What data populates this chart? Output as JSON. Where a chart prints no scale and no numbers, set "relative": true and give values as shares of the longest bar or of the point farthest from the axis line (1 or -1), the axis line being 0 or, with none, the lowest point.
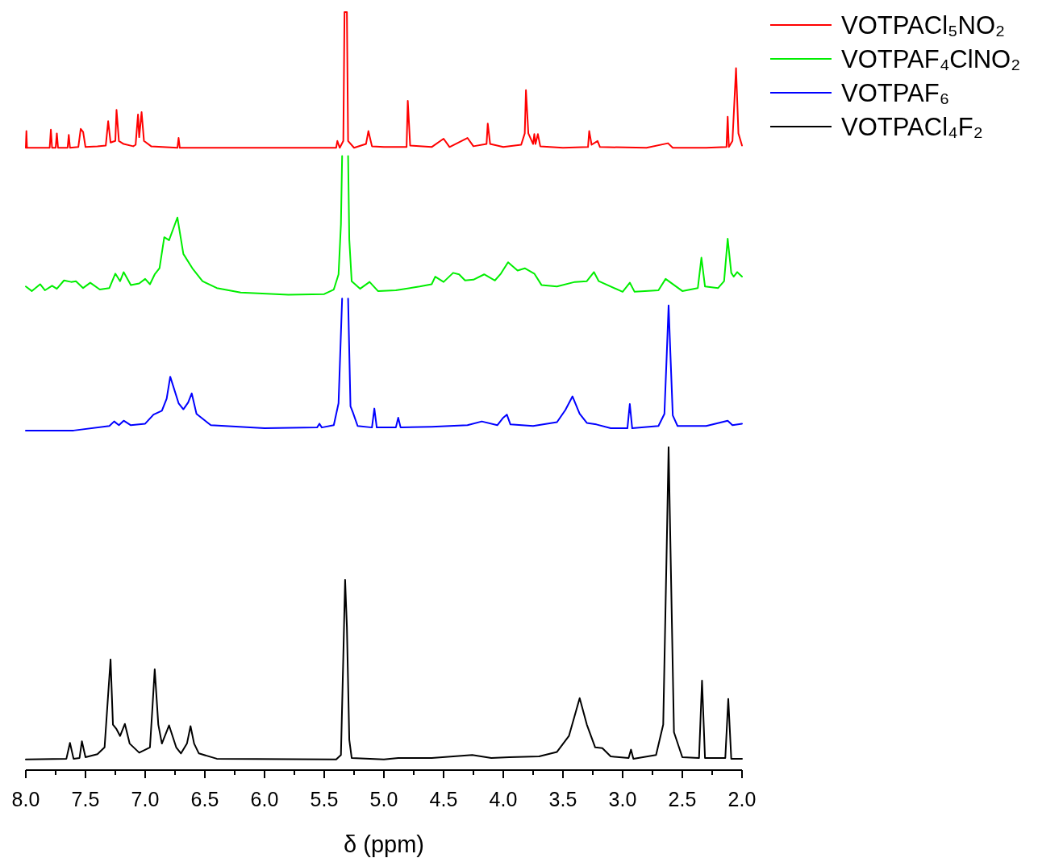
{
  "chart_data": {
    "type": "line",
    "relative": true,
    "xlabel": "δ (ppm)",
    "xlim": [
      8,
      2
    ],
    "xticks": [
      {
        "value": 8,
        "label": "8.0"
      },
      {
        "value": 7.75,
        "label": null
      },
      {
        "value": 7.5,
        "label": "7.5"
      },
      {
        "value": 7.25,
        "label": null
      },
      {
        "value": 7,
        "label": "7.0"
      },
      {
        "value": 6.75,
        "label": null
      },
      {
        "value": 6.5,
        "label": "6.5"
      },
      {
        "value": 6.25,
        "label": null
      },
      {
        "value": 6,
        "label": "6.0"
      },
      {
        "value": 5.75,
        "label": null
      },
      {
        "value": 5.5,
        "label": "5.5"
      },
      {
        "value": 5.25,
        "label": null
      },
      {
        "value": 5,
        "label": "5.0"
      },
      {
        "value": 4.75,
        "label": null
      },
      {
        "value": 4.5,
        "label": "4.5"
      },
      {
        "value": 4.25,
        "label": null
      },
      {
        "value": 4,
        "label": "4.0"
      },
      {
        "value": 3.75,
        "label": null
      },
      {
        "value": 3.5,
        "label": "3.5"
      },
      {
        "value": 3.25,
        "label": null
      },
      {
        "value": 3,
        "label": "3.0"
      },
      {
        "value": 2.75,
        "label": null
      },
      {
        "value": 2.5,
        "label": "2.5"
      },
      {
        "value": 2.25,
        "label": null
      },
      {
        "value": 2,
        "label": "2.0"
      }
    ],
    "legend": "top right",
    "tick_labels": "x",
    "grid": false,
    "marker": "none",
    "line_style": "solid",
    "series": [
      {
        "name": "VOTPACl₅NO₂",
        "color": "#ff0000",
        "x": [
          8.0,
          7.995,
          7.99,
          7.8,
          7.79,
          7.78,
          7.75,
          7.74,
          7.73,
          7.65,
          7.64,
          7.63,
          7.56,
          7.54,
          7.52,
          7.5,
          7.4,
          7.33,
          7.31,
          7.29,
          7.25,
          7.24,
          7.22,
          7.18,
          7.1,
          7.08,
          7.06,
          7.05,
          7.03,
          7.01,
          6.95,
          6.73,
          6.72,
          6.71,
          6.0,
          5.4,
          5.39,
          5.37,
          5.34,
          5.33,
          5.31,
          5.3,
          5.25,
          5.15,
          5.13,
          5.1,
          5.0,
          4.81,
          4.8,
          4.78,
          4.6,
          4.5,
          4.45,
          4.3,
          4.25,
          4.14,
          4.13,
          4.11,
          4.0,
          3.85,
          3.82,
          3.81,
          3.79,
          3.75,
          3.74,
          3.73,
          3.71,
          3.69,
          3.5,
          3.29,
          3.28,
          3.26,
          3.21,
          3.19,
          2.8,
          2.62,
          2.58,
          2.3,
          2.13,
          2.12,
          2.11,
          2.08,
          2.05,
          2.03,
          2.0
        ],
        "values": [
          0.821,
          0.843,
          0.821,
          0.821,
          0.845,
          0.821,
          0.821,
          0.84,
          0.821,
          0.821,
          0.838,
          0.821,
          0.822,
          0.846,
          0.842,
          0.822,
          0.823,
          0.824,
          0.856,
          0.828,
          0.83,
          0.871,
          0.83,
          0.826,
          0.823,
          0.825,
          0.865,
          0.835,
          0.868,
          0.83,
          0.823,
          0.821,
          0.834,
          0.821,
          0.821,
          0.821,
          0.83,
          0.821,
          0.83,
          1.0,
          1.0,
          0.83,
          0.821,
          0.826,
          0.843,
          0.823,
          0.822,
          0.822,
          0.883,
          0.824,
          0.822,
          0.833,
          0.822,
          0.834,
          0.823,
          0.826,
          0.853,
          0.826,
          0.822,
          0.825,
          0.84,
          0.897,
          0.84,
          0.826,
          0.839,
          0.826,
          0.839,
          0.823,
          0.821,
          0.822,
          0.843,
          0.825,
          0.83,
          0.822,
          0.821,
          0.827,
          0.821,
          0.821,
          0.822,
          0.862,
          0.822,
          0.83,
          0.926,
          0.84,
          0.824
        ]
      },
      {
        "name": "VOTPAF₄ClNO₂",
        "color": "#00ee00",
        "x": [
          8.0,
          7.95,
          7.88,
          7.84,
          7.78,
          7.74,
          7.68,
          7.62,
          7.58,
          7.52,
          7.46,
          7.38,
          7.3,
          7.25,
          7.21,
          7.18,
          7.12,
          7.05,
          7.0,
          6.96,
          6.92,
          6.88,
          6.84,
          6.8,
          6.73,
          6.68,
          6.6,
          6.52,
          6.4,
          6.2,
          5.8,
          5.5,
          5.42,
          5.38,
          5.36,
          5.35,
          5.325,
          5.3,
          5.29,
          5.27,
          5.2,
          5.12,
          5.05,
          4.9,
          4.7,
          4.6,
          4.57,
          4.5,
          4.42,
          4.37,
          4.32,
          4.25,
          4.16,
          4.07,
          4.02,
          3.96,
          3.88,
          3.82,
          3.74,
          3.68,
          3.55,
          3.4,
          3.3,
          3.24,
          3.2,
          3.0,
          2.94,
          2.9,
          2.7,
          2.64,
          2.5,
          2.37,
          2.34,
          2.31,
          2.2,
          2.15,
          2.12,
          2.09,
          2.07,
          2.04,
          2.0
        ],
        "values": [
          0.638,
          0.632,
          0.641,
          0.633,
          0.639,
          0.635,
          0.646,
          0.644,
          0.645,
          0.636,
          0.643,
          0.634,
          0.636,
          0.655,
          0.645,
          0.657,
          0.64,
          0.642,
          0.648,
          0.641,
          0.654,
          0.662,
          0.703,
          0.699,
          0.729,
          0.681,
          0.661,
          0.645,
          0.636,
          0.63,
          0.627,
          0.628,
          0.634,
          0.654,
          0.72,
          0.81,
          null,
          0.81,
          0.7,
          0.645,
          0.635,
          0.644,
          0.632,
          0.633,
          0.638,
          0.641,
          0.651,
          0.644,
          0.656,
          0.654,
          0.646,
          0.647,
          0.654,
          0.646,
          0.655,
          0.67,
          0.659,
          0.662,
          0.655,
          0.64,
          0.638,
          0.644,
          0.645,
          0.657,
          0.645,
          0.631,
          0.643,
          0.631,
          0.633,
          0.648,
          0.632,
          0.636,
          0.676,
          0.638,
          0.636,
          0.645,
          0.701,
          0.656,
          0.651,
          0.657,
          0.651
        ]
      },
      {
        "name": "VOTPAF₆",
        "color": "#0000ff",
        "x": [
          8.0,
          7.6,
          7.3,
          7.26,
          7.22,
          7.18,
          7.12,
          7.0,
          6.93,
          6.86,
          6.82,
          6.79,
          6.72,
          6.68,
          6.64,
          6.61,
          6.57,
          6.45,
          6.0,
          5.56,
          5.54,
          5.52,
          5.42,
          5.38,
          5.35,
          5.325,
          5.3,
          5.28,
          5.26,
          5.22,
          5.1,
          5.08,
          5.06,
          4.9,
          4.88,
          4.86,
          4.6,
          4.3,
          4.18,
          4.05,
          4.0,
          3.97,
          3.94,
          3.75,
          3.55,
          3.48,
          3.42,
          3.36,
          3.3,
          3.22,
          3.1,
          2.96,
          2.94,
          2.92,
          2.7,
          2.65,
          2.63,
          2.615,
          2.6,
          2.58,
          2.54,
          2.3,
          2.12,
          2.08,
          2.0
        ],
        "values": [
          0.448,
          0.448,
          0.454,
          0.46,
          0.455,
          0.461,
          0.455,
          0.457,
          0.469,
          0.474,
          0.49,
          0.519,
          0.484,
          0.476,
          0.485,
          0.497,
          0.47,
          0.455,
          0.451,
          0.452,
          0.457,
          0.452,
          0.455,
          0.484,
          0.622,
          null,
          0.622,
          0.48,
          0.472,
          0.454,
          0.452,
          0.477,
          0.452,
          0.452,
          0.465,
          0.452,
          0.453,
          0.455,
          0.46,
          0.455,
          0.465,
          0.469,
          0.456,
          0.454,
          0.459,
          0.475,
          0.493,
          0.47,
          0.458,
          0.456,
          0.451,
          0.451,
          0.483,
          0.451,
          0.454,
          0.47,
          0.55,
          0.613,
          0.55,
          0.468,
          0.454,
          0.454,
          0.461,
          0.455,
          0.457
        ]
      },
      {
        "name": "VOTPACl₄F₂",
        "color": "#000000",
        "x": [
          8.0,
          7.66,
          7.63,
          7.6,
          7.55,
          7.53,
          7.5,
          7.4,
          7.34,
          7.31,
          7.29,
          7.27,
          7.24,
          7.21,
          7.17,
          7.13,
          7.05,
          6.96,
          6.94,
          6.92,
          6.89,
          6.86,
          6.8,
          6.74,
          6.7,
          6.65,
          6.62,
          6.59,
          6.55,
          6.4,
          5.4,
          5.36,
          5.34,
          5.325,
          5.31,
          5.29,
          5.27,
          5.0,
          4.88,
          4.6,
          4.26,
          4.1,
          3.95,
          3.7,
          3.55,
          3.45,
          3.36,
          3.3,
          3.23,
          3.17,
          3.1,
          2.95,
          2.93,
          2.91,
          2.72,
          2.66,
          2.63,
          2.615,
          2.6,
          2.57,
          2.5,
          2.36,
          2.335,
          2.31,
          2.14,
          2.115,
          2.09,
          2.0
        ],
        "values": [
          0.014,
          0.015,
          0.036,
          0.015,
          0.016,
          0.038,
          0.017,
          0.021,
          0.03,
          0.1,
          0.146,
          0.06,
          0.054,
          0.045,
          0.061,
          0.035,
          0.023,
          0.03,
          0.08,
          0.133,
          0.06,
          0.035,
          0.059,
          0.03,
          0.022,
          0.035,
          0.058,
          0.035,
          0.022,
          0.015,
          0.014,
          0.02,
          0.15,
          0.251,
          0.189,
          0.04,
          0.016,
          0.014,
          0.016,
          0.016,
          0.02,
          0.016,
          0.017,
          0.018,
          0.024,
          0.045,
          0.095,
          0.06,
          0.03,
          0.029,
          0.018,
          0.016,
          0.027,
          0.015,
          0.02,
          0.06,
          0.3,
          0.426,
          0.3,
          0.05,
          0.017,
          0.016,
          0.118,
          0.016,
          0.016,
          0.094,
          0.015,
          0.015
        ]
      }
    ]
  }
}
